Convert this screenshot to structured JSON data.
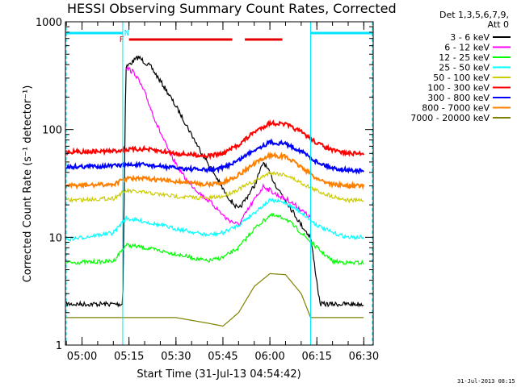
{
  "chart_data": {
    "type": "line",
    "title": "HESSI Observing Summary Count Rates, Corrected",
    "xlabel": "Start Time (31-Jul-13 04:54:42)",
    "ylabel": "Corrected Count Rate (s⁻¹ detector⁻¹)",
    "x_tick_labels": [
      "05:00",
      "05:15",
      "05:30",
      "05:45",
      "06:00",
      "06:15",
      "06:30"
    ],
    "y_tick_labels": [
      "1",
      "10",
      "100",
      "1000"
    ],
    "y_scale": "log",
    "ylim": [
      1,
      1000
    ],
    "xlim": [
      "04:54:42",
      "06:33:00"
    ],
    "legend_header": [
      "Det 1,3,5,6,7,9,",
      "Att 0"
    ],
    "legend_position": "right",
    "timestamp": "31-Jul-2013 08:15",
    "flag_labels": {
      "flare": "F",
      "night": "N"
    },
    "flag_color_flare": "#e60000",
    "flag_color_night": "#00e5ff",
    "night_intervals": [
      [
        "04:55",
        "05:13"
      ],
      [
        "06:13",
        "06:33"
      ]
    ],
    "flare_intervals": [
      [
        "05:15",
        "05:48"
      ],
      [
        "05:52",
        "06:04"
      ]
    ],
    "vertical_markers": [
      "05:13",
      "06:13"
    ],
    "series": [
      {
        "name": "3 - 6 keV",
        "color": "#000000",
        "x": [
          "04:55",
          "05:13",
          "05:14",
          "05:18",
          "05:22",
          "05:27",
          "05:32",
          "05:37",
          "05:42",
          "05:46",
          "05:50",
          "05:55",
          "05:58",
          "06:02",
          "06:06",
          "06:10",
          "06:13",
          "06:16",
          "06:20",
          "06:25",
          "06:30"
        ],
        "y": [
          2.4,
          2.4,
          380,
          470,
          380,
          230,
          130,
          70,
          40,
          25,
          18,
          30,
          50,
          30,
          20,
          13,
          10,
          2.4,
          2.4,
          2.4,
          2.4
        ]
      },
      {
        "name": "6 - 12 keV",
        "color": "#ff00ff",
        "x": [
          "05:14",
          "05:17",
          "05:20",
          "05:24",
          "05:28",
          "05:33",
          "05:38",
          "05:42",
          "05:46",
          "05:50",
          "05:54",
          "05:58",
          "06:02",
          "06:06",
          "06:10",
          "06:13"
        ],
        "y": [
          380,
          330,
          220,
          110,
          60,
          35,
          25,
          20,
          15,
          13,
          20,
          30,
          25,
          22,
          18,
          15
        ]
      },
      {
        "name": "12 - 25 keV",
        "color": "#00ff00",
        "x": [
          "04:55",
          "05:10",
          "05:14",
          "05:20",
          "05:30",
          "05:40",
          "05:45",
          "05:50",
          "05:55",
          "06:00",
          "06:05",
          "06:10",
          "06:15",
          "06:20",
          "06:25",
          "06:30"
        ],
        "y": [
          5.8,
          6,
          8.5,
          8,
          7,
          6,
          6.5,
          8,
          12,
          16,
          15,
          11,
          8,
          6,
          5.8,
          5.8
        ]
      },
      {
        "name": "25 - 50 keV",
        "color": "#00ffff",
        "x": [
          "04:55",
          "05:10",
          "05:14",
          "05:20",
          "05:30",
          "05:40",
          "05:45",
          "05:50",
          "05:55",
          "06:00",
          "06:05",
          "06:10",
          "06:15",
          "06:20",
          "06:25",
          "06:30"
        ],
        "y": [
          9.5,
          11,
          15,
          14,
          12,
          10.5,
          11,
          13,
          17,
          22,
          21,
          17,
          13,
          11,
          10,
          10
        ]
      },
      {
        "name": "50 - 100 keV",
        "color": "#cccc00",
        "x": [
          "04:55",
          "05:10",
          "05:14",
          "05:20",
          "05:30",
          "05:40",
          "05:45",
          "05:50",
          "05:55",
          "06:00",
          "06:05",
          "06:10",
          "06:15",
          "06:20",
          "06:25",
          "06:30"
        ],
        "y": [
          22,
          23,
          27,
          26,
          24,
          23,
          24,
          28,
          33,
          40,
          38,
          32,
          27,
          24,
          22,
          22
        ]
      },
      {
        "name": "100 - 300 keV",
        "color": "#ff0000",
        "x": [
          "04:55",
          "05:10",
          "05:14",
          "05:20",
          "05:30",
          "05:40",
          "05:45",
          "05:50",
          "05:55",
          "06:00",
          "06:05",
          "06:10",
          "06:15",
          "06:20",
          "06:25",
          "06:30"
        ],
        "y": [
          62,
          63,
          65,
          66,
          60,
          57,
          60,
          72,
          95,
          115,
          112,
          95,
          75,
          64,
          60,
          60
        ]
      },
      {
        "name": "300 - 800 keV",
        "color": "#0000ff",
        "x": [
          "04:55",
          "05:10",
          "05:14",
          "05:20",
          "05:30",
          "05:40",
          "05:45",
          "05:50",
          "05:55",
          "06:00",
          "06:05",
          "06:10",
          "06:15",
          "06:20",
          "06:25",
          "06:30"
        ],
        "y": [
          45,
          46,
          47,
          47,
          44,
          42,
          44,
          52,
          65,
          76,
          74,
          63,
          50,
          44,
          42,
          41
        ]
      },
      {
        "name": "800 - 7000 keV",
        "color": "#ff8000",
        "x": [
          "04:55",
          "05:10",
          "05:14",
          "05:20",
          "05:30",
          "05:40",
          "05:45",
          "05:50",
          "05:55",
          "06:00",
          "06:05",
          "06:10",
          "06:15",
          "06:20",
          "06:25",
          "06:30"
        ],
        "y": [
          30,
          31,
          35,
          35,
          33,
          31,
          32,
          38,
          48,
          58,
          56,
          45,
          35,
          31,
          30,
          30
        ]
      },
      {
        "name": "7000 - 20000 keV",
        "color": "#808000",
        "x": [
          "04:55",
          "05:14",
          "05:20",
          "05:30",
          "05:40",
          "05:45",
          "05:50",
          "05:55",
          "06:00",
          "06:05",
          "06:10",
          "06:13",
          "06:20",
          "06:30"
        ],
        "y": [
          1.8,
          1.8,
          1.8,
          1.8,
          1.6,
          1.5,
          2,
          3.5,
          4.6,
          4.5,
          3,
          1.8,
          1.8,
          1.8
        ]
      }
    ]
  }
}
